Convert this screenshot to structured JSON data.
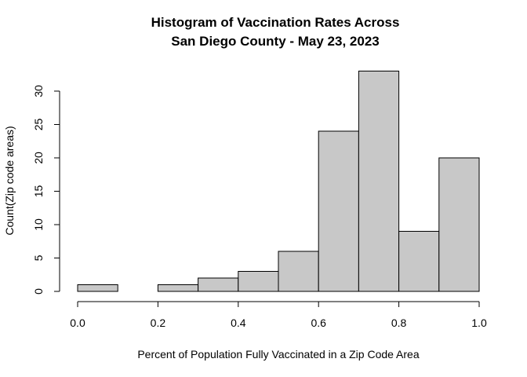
{
  "chart_data": {
    "type": "bar",
    "title": [
      "Histogram of Vaccination Rates Across",
      "San Diego County - May 23, 2023"
    ],
    "xlabel": "Percent of Population Fully Vaccinated in a Zip Code Area",
    "ylabel": "Count(Zip code areas)",
    "bins": [
      {
        "start": 0.0,
        "end": 0.1,
        "count": 1
      },
      {
        "start": 0.1,
        "end": 0.2,
        "count": 0
      },
      {
        "start": 0.2,
        "end": 0.3,
        "count": 1
      },
      {
        "start": 0.3,
        "end": 0.4,
        "count": 2
      },
      {
        "start": 0.4,
        "end": 0.5,
        "count": 3
      },
      {
        "start": 0.5,
        "end": 0.6,
        "count": 6
      },
      {
        "start": 0.6,
        "end": 0.7,
        "count": 24
      },
      {
        "start": 0.7,
        "end": 0.8,
        "count": 33
      },
      {
        "start": 0.8,
        "end": 0.9,
        "count": 9
      },
      {
        "start": 0.9,
        "end": 1.0,
        "count": 20
      }
    ],
    "xlim": [
      0.0,
      1.0
    ],
    "ylim": [
      0,
      33
    ],
    "x_ticks": [
      "0.0",
      "0.2",
      "0.4",
      "0.6",
      "0.8",
      "1.0"
    ],
    "y_ticks": [
      "0",
      "5",
      "10",
      "15",
      "20",
      "25",
      "30"
    ],
    "bar_color": "#c8c8c8",
    "grid": false
  }
}
